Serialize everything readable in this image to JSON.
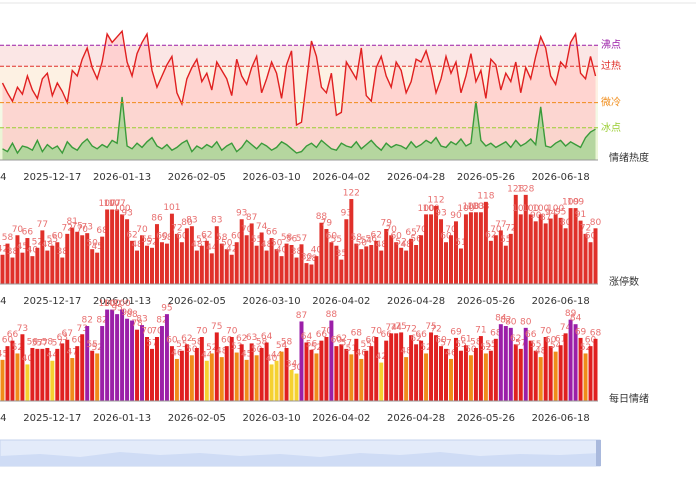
{
  "chart_data": [
    {
      "type": "line",
      "axis_label": "情绪热度",
      "ylim": [
        0,
        100
      ],
      "categories": [
        "4",
        null,
        null,
        null,
        null,
        null,
        null,
        null,
        null,
        null,
        "2025-12-17",
        null,
        null,
        null,
        null,
        null,
        null,
        null,
        null,
        null,
        null,
        null,
        null,
        null,
        "2026-01-13",
        null,
        null,
        null,
        null,
        null,
        null,
        null,
        null,
        null,
        null,
        null,
        null,
        null,
        null,
        "2026-02-05",
        null,
        null,
        null,
        null,
        null,
        null,
        null,
        null,
        null,
        null,
        null,
        null,
        null,
        null,
        "2026-03-10",
        null,
        null,
        null,
        null,
        null,
        null,
        null,
        null,
        null,
        null,
        null,
        null,
        null,
        "2026-04-02",
        null,
        null,
        null,
        null,
        null,
        null,
        null,
        null,
        null,
        null,
        null,
        null,
        null,
        null,
        "2026-04-28",
        null,
        null,
        null,
        null,
        null,
        null,
        null,
        null,
        null,
        null,
        null,
        null,
        null,
        "2026-05-26",
        null,
        null,
        null,
        null,
        null,
        null,
        null,
        null,
        null,
        null,
        null,
        null,
        null,
        null,
        "2026-06-18",
        null,
        null,
        null,
        null,
        null,
        null,
        null
      ],
      "thresholds": [
        {
          "label": "沸点",
          "value": 82,
          "color": "#9b1fa8"
        },
        {
          "label": "过热",
          "value": 67,
          "color": "#e0302a"
        },
        {
          "label": "微冷",
          "value": 41,
          "color": "#f08c1a"
        },
        {
          "label": "冰点",
          "value": 23,
          "color": "#9acd32"
        }
      ],
      "series": [
        {
          "color": "#e02020",
          "fill": "#ffc9c9",
          "values": [
            55,
            48,
            42,
            52,
            47,
            60,
            50,
            44,
            58,
            62,
            46,
            55,
            49,
            41,
            64,
            60,
            72,
            80,
            66,
            58,
            70,
            90,
            84,
            88,
            92,
            70,
            60,
            76,
            84,
            90,
            64,
            52,
            60,
            68,
            74,
            48,
            40,
            58,
            66,
            72,
            56,
            62,
            50,
            70,
            64,
            58,
            46,
            72,
            60,
            54,
            66,
            74,
            48,
            58,
            70,
            62,
            44,
            68,
            78,
            25,
            27,
            56,
            85,
            74,
            52,
            48,
            62,
            32,
            34,
            70,
            64,
            58,
            80,
            46,
            42,
            66,
            74,
            60,
            52,
            70,
            64,
            48,
            56,
            72,
            70,
            78,
            66,
            48,
            58,
            74,
            62,
            70,
            48,
            60,
            76,
            56,
            64,
            44,
            72,
            68,
            50,
            62,
            56,
            70,
            48,
            66,
            58,
            74,
            88,
            80,
            60,
            54,
            70,
            66,
            84,
            90,
            62,
            58,
            74,
            60
          ]
        },
        {
          "color": "#3a9a3a",
          "fill": "#9ed68f",
          "values": [
            8,
            6,
            12,
            5,
            10,
            9,
            7,
            14,
            6,
            11,
            8,
            10,
            5,
            13,
            9,
            7,
            12,
            15,
            10,
            8,
            11,
            9,
            14,
            12,
            45,
            10,
            8,
            12,
            9,
            13,
            16,
            10,
            8,
            11,
            7,
            9,
            12,
            14,
            6,
            10,
            8,
            11,
            9,
            13,
            7,
            10,
            12,
            6,
            9,
            14,
            11,
            8,
            12,
            10,
            7,
            9,
            13,
            11,
            8,
            5,
            6,
            10,
            12,
            9,
            14,
            11,
            8,
            7,
            12,
            10,
            9,
            13,
            8,
            11,
            14,
            10,
            7,
            12,
            9,
            11,
            10,
            8,
            13,
            9,
            11,
            14,
            12,
            16,
            10,
            9,
            13,
            11,
            15,
            10,
            12,
            42,
            14,
            10,
            12,
            9,
            11,
            13,
            9,
            14,
            10,
            12,
            15,
            11,
            38,
            10,
            9,
            12,
            14,
            10,
            13,
            11,
            9,
            16,
            20,
            22
          ]
        }
      ]
    },
    {
      "type": "bar",
      "axis_label": "涨停数",
      "ylim": [
        0,
        135
      ],
      "color": "#e0302a",
      "label_color": "#e87070",
      "categories": [
        "4",
        null,
        null,
        null,
        null,
        null,
        null,
        null,
        null,
        null,
        "2025-12-17",
        null,
        null,
        null,
        null,
        null,
        null,
        null,
        null,
        null,
        null,
        null,
        null,
        null,
        "2026-01-13",
        null,
        null,
        null,
        null,
        null,
        null,
        null,
        null,
        null,
        null,
        null,
        null,
        null,
        null,
        "2026-02-05",
        null,
        null,
        null,
        null,
        null,
        null,
        null,
        null,
        null,
        null,
        null,
        null,
        null,
        null,
        "2026-03-10",
        null,
        null,
        null,
        null,
        null,
        null,
        null,
        null,
        null,
        null,
        null,
        null,
        null,
        "2026-04-02",
        null,
        null,
        null,
        null,
        null,
        null,
        null,
        null,
        null,
        null,
        null,
        null,
        null,
        null,
        "2026-04-28",
        null,
        null,
        null,
        null,
        null,
        null,
        null,
        null,
        null,
        null,
        null,
        null,
        null,
        "2026-05-26",
        null,
        null,
        null,
        null,
        null,
        null,
        null,
        null,
        null,
        null,
        null,
        null,
        null,
        null,
        "2026-06-18",
        null,
        null,
        null,
        null,
        null,
        null,
        null
      ],
      "values": [
        42,
        58,
        38,
        70,
        45,
        66,
        40,
        52,
        77,
        48,
        55,
        60,
        38,
        72,
        81,
        75,
        70,
        73,
        50,
        45,
        68,
        107,
        107,
        107,
        100,
        93,
        62,
        48,
        70,
        55,
        52,
        86,
        60,
        58,
        101,
        72,
        60,
        80,
        83,
        48,
        55,
        62,
        44,
        83,
        58,
        50,
        42,
        60,
        93,
        70,
        87,
        55,
        74,
        48,
        66,
        50,
        40,
        58,
        56,
        38,
        57,
        30,
        28,
        40,
        88,
        79,
        60,
        55,
        35,
        93,
        122,
        58,
        50,
        54,
        56,
        62,
        48,
        79,
        70,
        60,
        52,
        48,
        65,
        56,
        70,
        100,
        100,
        112,
        93,
        60,
        70,
        90,
        51,
        100,
        103,
        103,
        103,
        118,
        62,
        70,
        77,
        55,
        72,
        128,
        100,
        128,
        100,
        90,
        100,
        87,
        94,
        100,
        95,
        80,
        109,
        109,
        91,
        72,
        60,
        80
      ]
    },
    {
      "type": "bar",
      "axis_label": "每日情绪",
      "ylim": [
        0,
        105
      ],
      "label_color": "#e87070",
      "color_rules": [
        {
          "min": 80,
          "color": "#9b1fa8"
        },
        {
          "min": 55,
          "color": "#e02020"
        },
        {
          "min": 45,
          "color": "#f08c1a"
        },
        {
          "min": 0,
          "color": "#f5d130"
        }
      ],
      "categories": [
        "4",
        null,
        null,
        null,
        null,
        null,
        null,
        null,
        null,
        null,
        "2025-12-17",
        null,
        null,
        null,
        null,
        null,
        null,
        null,
        null,
        null,
        null,
        null,
        null,
        null,
        "2026-01-13",
        null,
        null,
        null,
        null,
        null,
        null,
        null,
        null,
        null,
        null,
        null,
        null,
        null,
        null,
        "2026-02-05",
        null,
        null,
        null,
        null,
        null,
        null,
        null,
        null,
        null,
        null,
        null,
        null,
        null,
        null,
        "2026-03-10",
        null,
        null,
        null,
        null,
        null,
        null,
        null,
        null,
        null,
        null,
        null,
        null,
        null,
        "2026-04-02",
        null,
        null,
        null,
        null,
        null,
        null,
        null,
        null,
        null,
        null,
        null,
        null,
        null,
        null,
        "2026-04-28",
        null,
        null,
        null,
        null,
        null,
        null,
        null,
        null,
        null,
        null,
        null,
        null,
        null,
        "2026-05-26",
        null,
        null,
        null,
        null,
        null,
        null,
        null,
        null,
        null,
        null,
        null,
        null,
        null,
        null,
        "2026-06-18",
        null,
        null,
        null,
        null,
        null,
        null,
        null
      ],
      "values": [
        45,
        60,
        66,
        52,
        73,
        40,
        58,
        57,
        57,
        58,
        44,
        57,
        63,
        67,
        47,
        60,
        73,
        82,
        55,
        52,
        82,
        100,
        100,
        95,
        100,
        90,
        88,
        78,
        83,
        70,
        57,
        70,
        82,
        95,
        60,
        46,
        55,
        62,
        50,
        58,
        70,
        44,
        52,
        75,
        48,
        60,
        70,
        53,
        62,
        45,
        63,
        50,
        58,
        64,
        40,
        44,
        54,
        58,
        34,
        30,
        87,
        64,
        56,
        52,
        66,
        70,
        88,
        60,
        62,
        57,
        51,
        68,
        46,
        55,
        60,
        70,
        42,
        66,
        74,
        74,
        75,
        48,
        72,
        62,
        66,
        52,
        75,
        72,
        60,
        57,
        46,
        69,
        55,
        61,
        50,
        58,
        71,
        52,
        55,
        68,
        84,
        82,
        80,
        62,
        57,
        80,
        66,
        55,
        48,
        70,
        60,
        54,
        61,
        74,
        89,
        84,
        69,
        52,
        60,
        68
      ]
    }
  ]
}
